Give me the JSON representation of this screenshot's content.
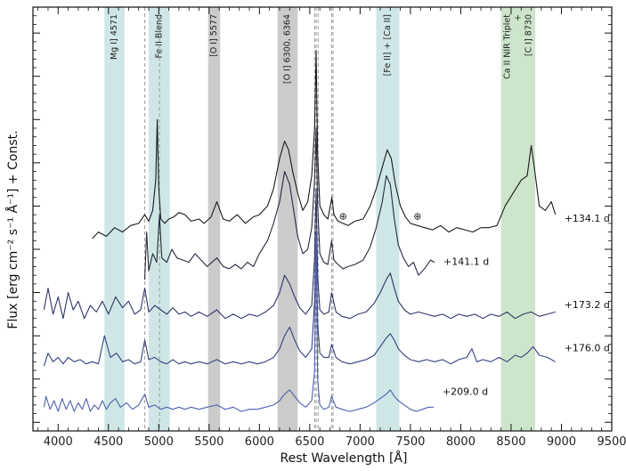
{
  "chart_data": {
    "type": "line",
    "title": "",
    "xlabel": "Rest Wavelength [Å]",
    "ylabel": "Flux [erg cm⁻² s⁻¹ Å⁻¹] + Const.",
    "xlim": [
      3750,
      9500
    ],
    "xticks": [
      4000,
      4500,
      5000,
      5500,
      6000,
      6500,
      7000,
      7500,
      8000,
      8500,
      9000,
      9500
    ],
    "xtick_labels": [
      "4000",
      "4500",
      "5000",
      "5500",
      "6000",
      "6500",
      "7000",
      "7500",
      "8000",
      "8500",
      "9000",
      "9500"
    ],
    "grid": false,
    "bands": [
      {
        "label": "Mg I] 4571",
        "from": 4460,
        "to": 4660,
        "color": "#cfe6e6"
      },
      {
        "label": "Fe II Blend",
        "from": 4900,
        "to": 5110,
        "color": "#cfe6e6"
      },
      {
        "label": "[O I] 5577",
        "from": 5490,
        "to": 5610,
        "color": "#cbcbcb"
      },
      {
        "label": "[O I] 6300, 6364",
        "from": 6180,
        "to": 6380,
        "color": "#cbcbcb"
      },
      {
        "label": "[Fe II] + [Ca II]",
        "from": 7160,
        "to": 7390,
        "color": "#cfe6e6"
      },
      {
        "label": "Ca II NIR Triplet\n+\n[C I] 8730",
        "from": 8400,
        "to": 8740,
        "color": "#cde5cb"
      }
    ],
    "reference_lines": [
      4861,
      5007,
      6548,
      6563,
      6583,
      6717,
      6731
    ],
    "telluric_x": [
      6830,
      7570
    ],
    "telluric_symbol": "⊕",
    "series": [
      {
        "name": "+134.1 d",
        "color": "#1a1a1a",
        "offset": 3.2,
        "x": [
          4340,
          4400,
          4480,
          4560,
          4640,
          4720,
          4800,
          4860,
          4900,
          4940,
          4970,
          4985,
          5000,
          5020,
          5060,
          5100,
          5150,
          5200,
          5260,
          5320,
          5400,
          5450,
          5520,
          5577,
          5640,
          5700,
          5780,
          5860,
          5940,
          6000,
          6080,
          6140,
          6200,
          6250,
          6290,
          6330,
          6380,
          6430,
          6480,
          6520,
          6548,
          6563,
          6578,
          6600,
          6640,
          6680,
          6720,
          6740,
          6780,
          6830,
          6880,
          6950,
          7030,
          7100,
          7160,
          7220,
          7270,
          7310,
          7350,
          7400,
          7450,
          7500,
          7570,
          7640,
          7720,
          7800,
          7880,
          7960,
          8040,
          8120,
          8200,
          8280,
          8360,
          8440,
          8520,
          8600,
          8660,
          8700,
          8730,
          8780,
          8840,
          8900,
          8940
        ],
        "y": [
          0.05,
          0.2,
          0.1,
          0.3,
          0.2,
          0.35,
          0.4,
          0.6,
          0.45,
          0.7,
          1.4,
          2.8,
          1.2,
          0.5,
          0.4,
          0.5,
          0.55,
          0.65,
          0.6,
          0.45,
          0.5,
          0.4,
          0.55,
          0.9,
          0.5,
          0.45,
          0.6,
          0.4,
          0.55,
          0.6,
          0.8,
          1.2,
          1.9,
          2.3,
          2.1,
          1.6,
          1.1,
          0.7,
          0.9,
          1.5,
          2.6,
          4.4,
          2.0,
          0.8,
          0.6,
          0.5,
          1.0,
          0.6,
          0.45,
          0.4,
          0.35,
          0.45,
          0.5,
          0.8,
          1.2,
          1.7,
          2.1,
          1.9,
          1.3,
          0.8,
          0.55,
          0.4,
          0.35,
          0.3,
          0.25,
          0.35,
          0.2,
          0.3,
          0.25,
          0.2,
          0.3,
          0.3,
          0.35,
          0.8,
          1.1,
          1.4,
          1.5,
          2.2,
          1.7,
          0.8,
          0.7,
          0.9,
          0.6
        ]
      },
      {
        "name": "+141.1 d",
        "color": "#262a3e",
        "offset": 2.2,
        "x": [
          4860,
          4880,
          4900,
          4940,
          4980,
          5007,
          5030,
          5080,
          5130,
          5180,
          5240,
          5300,
          5360,
          5420,
          5480,
          5577,
          5640,
          5700,
          5760,
          5820,
          5880,
          5940,
          6000,
          6080,
          6140,
          6200,
          6250,
          6300,
          6340,
          6380,
          6430,
          6480,
          6520,
          6548,
          6563,
          6578,
          6600,
          6640,
          6680,
          6717,
          6740,
          6780,
          6830,
          6880,
          6950,
          7030,
          7100,
          7160,
          7220,
          7260,
          7300,
          7340,
          7380,
          7430,
          7480,
          7530,
          7580,
          7640,
          7700,
          7740
        ],
        "y": [
          0.1,
          1.2,
          0.3,
          0.7,
          0.5,
          1.6,
          0.6,
          0.5,
          0.8,
          0.6,
          0.55,
          0.5,
          0.7,
          0.55,
          0.4,
          0.6,
          0.4,
          0.35,
          0.45,
          0.35,
          0.5,
          0.4,
          0.7,
          1.0,
          1.4,
          1.9,
          2.6,
          2.3,
          1.7,
          1.1,
          0.7,
          0.8,
          1.3,
          2.4,
          3.6,
          1.8,
          0.7,
          0.5,
          0.45,
          1.0,
          0.55,
          0.45,
          0.35,
          0.4,
          0.45,
          0.55,
          0.85,
          1.3,
          1.9,
          2.5,
          2.3,
          1.5,
          0.9,
          0.6,
          0.4,
          0.5,
          0.2,
          0.35,
          0.55,
          0.5
        ]
      },
      {
        "name": "+173.2 d",
        "color": "#2e3568",
        "offset": 1.2,
        "x": [
          3860,
          3900,
          3950,
          4000,
          4050,
          4100,
          4150,
          4200,
          4260,
          4320,
          4380,
          4440,
          4500,
          4571,
          4640,
          4700,
          4760,
          4820,
          4861,
          4900,
          4960,
          5020,
          5080,
          5140,
          5200,
          5260,
          5320,
          5400,
          5480,
          5577,
          5660,
          5740,
          5820,
          5900,
          5980,
          6060,
          6140,
          6200,
          6250,
          6300,
          6350,
          6400,
          6460,
          6520,
          6548,
          6563,
          6578,
          6600,
          6640,
          6690,
          6717,
          6760,
          6820,
          6900,
          6980,
          7060,
          7140,
          7200,
          7260,
          7300,
          7340,
          7380,
          7440,
          7500,
          7580,
          7660,
          7740,
          7820,
          7900,
          7980,
          8060,
          8140,
          8220,
          8300,
          8380,
          8460,
          8540,
          8620,
          8700,
          8780,
          8860,
          8940
        ],
        "y": [
          0.4,
          0.9,
          0.3,
          0.7,
          0.2,
          0.8,
          0.4,
          0.6,
          0.2,
          0.5,
          0.35,
          0.6,
          0.3,
          0.7,
          0.45,
          0.6,
          0.3,
          0.4,
          0.9,
          0.35,
          0.5,
          0.4,
          0.3,
          0.45,
          0.3,
          0.35,
          0.25,
          0.35,
          0.25,
          0.4,
          0.2,
          0.3,
          0.2,
          0.3,
          0.25,
          0.35,
          0.5,
          0.8,
          1.2,
          1.0,
          0.7,
          0.45,
          0.3,
          0.5,
          1.6,
          3.2,
          1.2,
          0.4,
          0.3,
          0.35,
          0.8,
          0.35,
          0.25,
          0.2,
          0.3,
          0.35,
          0.55,
          0.8,
          1.1,
          1.25,
          0.9,
          0.6,
          0.4,
          0.3,
          0.35,
          0.3,
          0.25,
          0.3,
          0.2,
          0.3,
          0.25,
          0.3,
          0.2,
          0.3,
          0.25,
          0.35,
          0.2,
          0.3,
          0.35,
          0.25,
          0.3,
          0.35
        ]
      },
      {
        "name": "+176.0 d",
        "color": "#35417f",
        "offset": 0.2,
        "x": [
          3860,
          3900,
          3950,
          4000,
          4050,
          4100,
          4160,
          4220,
          4280,
          4340,
          4400,
          4460,
          4520,
          4580,
          4640,
          4700,
          4760,
          4820,
          4861,
          4900,
          4960,
          5020,
          5080,
          5140,
          5200,
          5260,
          5320,
          5400,
          5480,
          5577,
          5660,
          5740,
          5820,
          5900,
          5980,
          6060,
          6140,
          6200,
          6250,
          6300,
          6350,
          6400,
          6460,
          6520,
          6548,
          6563,
          6578,
          6600,
          6640,
          6690,
          6717,
          6760,
          6820,
          6900,
          6980,
          7060,
          7140,
          7200,
          7260,
          7300,
          7340,
          7380,
          7440,
          7500,
          7580,
          7660,
          7740,
          7820,
          7900,
          7980,
          8060,
          8110,
          8160,
          8220,
          8300,
          8380,
          8460,
          8540,
          8600,
          8660,
          8720,
          8780,
          8860,
          8940
        ],
        "y": [
          0.1,
          0.4,
          0.2,
          0.3,
          0.15,
          0.3,
          0.2,
          0.25,
          0.15,
          0.2,
          0.15,
          0.8,
          0.3,
          0.4,
          0.2,
          0.25,
          0.15,
          0.2,
          0.7,
          0.25,
          0.3,
          0.2,
          0.15,
          0.25,
          0.15,
          0.2,
          0.15,
          0.2,
          0.15,
          0.25,
          0.15,
          0.2,
          0.15,
          0.2,
          0.15,
          0.2,
          0.3,
          0.5,
          0.8,
          1.0,
          0.7,
          0.45,
          0.3,
          0.5,
          1.6,
          3.1,
          1.1,
          0.4,
          0.3,
          0.3,
          0.6,
          0.3,
          0.2,
          0.15,
          0.2,
          0.25,
          0.35,
          0.55,
          0.75,
          0.85,
          0.7,
          0.5,
          0.35,
          0.25,
          0.2,
          0.25,
          0.2,
          0.25,
          0.15,
          0.25,
          0.3,
          0.5,
          0.2,
          0.25,
          0.2,
          0.3,
          0.2,
          0.35,
          0.3,
          0.4,
          0.55,
          0.35,
          0.3,
          0.2
        ]
      },
      {
        "name": "+209.0 d",
        "color": "#4f61ae",
        "offset": -0.8,
        "x": [
          3860,
          3880,
          3920,
          3960,
          4000,
          4040,
          4080,
          4120,
          4160,
          4200,
          4240,
          4280,
          4320,
          4360,
          4400,
          4440,
          4480,
          4520,
          4571,
          4620,
          4680,
          4740,
          4800,
          4861,
          4900,
          4960,
          5020,
          5080,
          5140,
          5200,
          5260,
          5320,
          5400,
          5480,
          5577,
          5660,
          5740,
          5820,
          5900,
          5980,
          6060,
          6140,
          6200,
          6250,
          6300,
          6350,
          6400,
          6460,
          6520,
          6548,
          6563,
          6578,
          6600,
          6640,
          6690,
          6717,
          6760,
          6820,
          6900,
          6980,
          7060,
          7140,
          7200,
          7260,
          7300,
          7340,
          7380,
          7440,
          7500,
          7560,
          7620,
          7680,
          7730
        ],
        "y": [
          0.15,
          0.4,
          0.1,
          0.3,
          0.05,
          0.35,
          0.1,
          0.3,
          0.05,
          0.25,
          0.1,
          0.35,
          0.05,
          0.2,
          0.1,
          0.3,
          0.1,
          0.25,
          0.35,
          0.15,
          0.25,
          0.1,
          0.2,
          0.45,
          0.15,
          0.2,
          0.1,
          0.15,
          0.1,
          0.15,
          0.1,
          0.15,
          0.1,
          0.15,
          0.2,
          0.1,
          0.15,
          0.05,
          0.1,
          0.1,
          0.15,
          0.2,
          0.3,
          0.45,
          0.55,
          0.4,
          0.25,
          0.15,
          0.3,
          1.0,
          4.2,
          0.8,
          0.2,
          0.1,
          0.15,
          0.4,
          0.15,
          0.1,
          0.05,
          0.1,
          0.15,
          0.25,
          0.35,
          0.45,
          0.55,
          0.4,
          0.3,
          0.2,
          0.1,
          0.05,
          0.1,
          0.15,
          0.15
        ]
      }
    ]
  }
}
